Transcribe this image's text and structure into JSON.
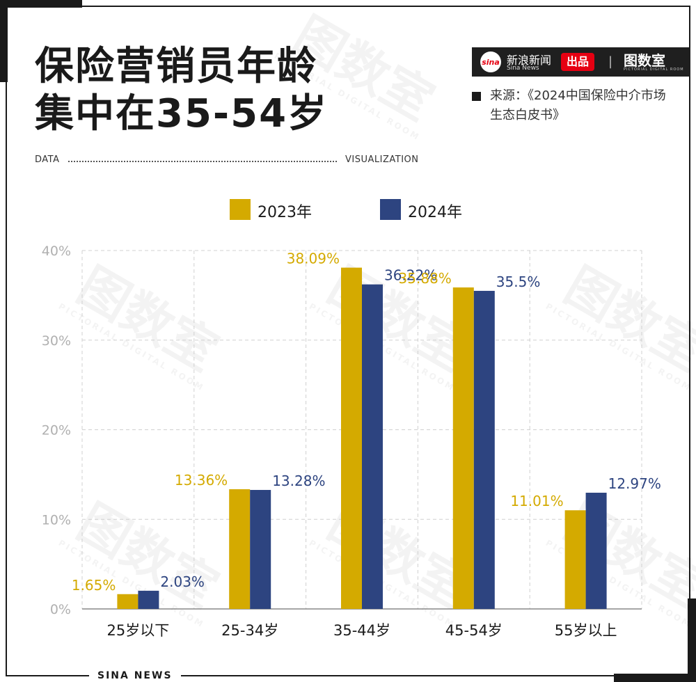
{
  "header": {
    "title_line1": "保险营销员年龄",
    "title_line2": "集中在35-54岁",
    "data_left": "DATA",
    "data_right": "VISUALIZATION"
  },
  "brand": {
    "sina_logo": "sina",
    "sina_name": "新浪新闻",
    "sina_en": "Sina News",
    "produce": "出品",
    "separator": "|",
    "room_name": "图数室",
    "room_en": "PICTORIAL DIGITAL ROOM"
  },
  "source": "来源：《2024中国保险中介市场生态白皮书》",
  "footer": {
    "label": "SINA NEWS"
  },
  "watermark": {
    "text": "图数室",
    "subtext": "PICTORIAL DIGITAL ROOM"
  },
  "colors": {
    "series_2023": "#d4aa00",
    "series_2024": "#2d4480",
    "grid": "#d0d0d0",
    "axis": "#888888"
  },
  "legend": [
    {
      "label": "2023年",
      "color": "#d4aa00"
    },
    {
      "label": "2024年",
      "color": "#2d4480"
    }
  ],
  "chart_data": {
    "type": "bar",
    "categories": [
      "25岁以下",
      "25-34岁",
      "35-44岁",
      "45-54岁",
      "55岁以上"
    ],
    "series": [
      {
        "name": "2023年",
        "values": [
          1.65,
          13.36,
          38.09,
          35.88,
          11.01
        ],
        "labels": [
          "1.65%",
          "13.36%",
          "38.09%",
          "35.88%",
          "11.01%"
        ]
      },
      {
        "name": "2024年",
        "values": [
          2.03,
          13.28,
          36.22,
          35.5,
          12.97
        ],
        "labels": [
          "2.03%",
          "13.28%",
          "36.22%",
          "35.5%",
          "12.97%"
        ]
      }
    ],
    "yticks": [
      "0%",
      "10%",
      "20%",
      "30%",
      "40%"
    ],
    "ylim": [
      0,
      40
    ],
    "grid": true,
    "legend_position": "top"
  }
}
